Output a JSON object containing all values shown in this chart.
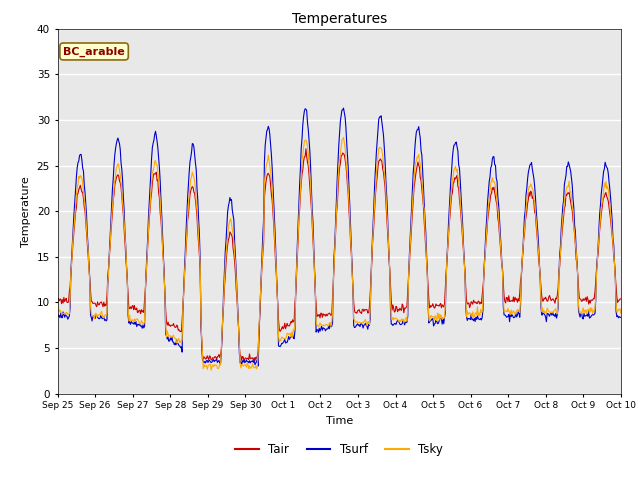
{
  "title": "Temperatures",
  "xlabel": "Time",
  "ylabel": "Temperature",
  "ylim": [
    0,
    40
  ],
  "annotation": "BC_arable",
  "legend": [
    "Tair",
    "Tsurf",
    "Tsky"
  ],
  "line_colors": [
    "#cc0000",
    "#0000cc",
    "#ffaa00"
  ],
  "background_color": "#e8e8e8",
  "x_ticks": [
    "Sep 25",
    "Sep 26",
    "Sep 27",
    "Sep 28",
    "Sep 29",
    "Sep 30",
    "Oct 1",
    "Oct 2",
    "Oct 3",
    "Oct 4",
    "Oct 5",
    "Oct 6",
    "Oct 7",
    "Oct 8",
    "Oct 9",
    "Oct 10"
  ],
  "n_points": 720
}
